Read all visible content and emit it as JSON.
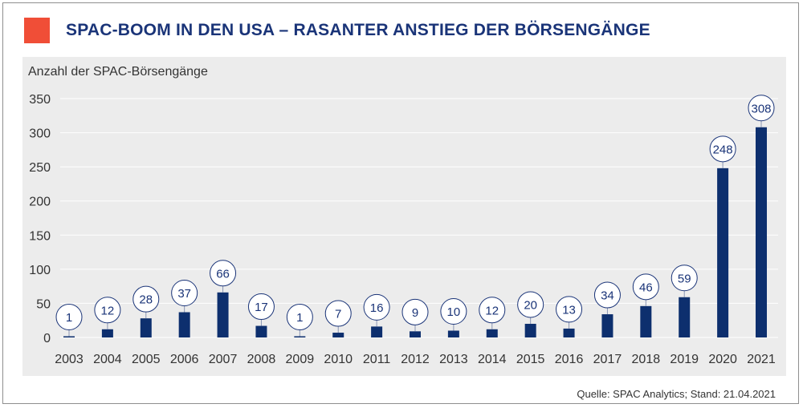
{
  "title": "SPAC-BOOM IN DEN USA – RASANTER ANSTIEG DER BÖRSENGÄNGE",
  "source": "Quelle: SPAC Analytics; Stand: 21.04.2021",
  "colors": {
    "accent": "#f04e37",
    "bar": "#0d2f6e",
    "title": "#1a3478",
    "panel": "#ececec",
    "grid": "#ffffff"
  },
  "chart_data": {
    "type": "bar",
    "ylabel": "Anzahl der SPAC-Börsengänge",
    "ylim": [
      0,
      350
    ],
    "yticks": [
      0,
      50,
      100,
      150,
      200,
      250,
      300,
      350
    ],
    "grid": true,
    "categories": [
      "2003",
      "2004",
      "2005",
      "2006",
      "2007",
      "2008",
      "2009",
      "2010",
      "2011",
      "2012",
      "2013",
      "2014",
      "2015",
      "2016",
      "2017",
      "2018",
      "2019",
      "2020",
      "2021"
    ],
    "values": [
      1,
      12,
      28,
      37,
      66,
      17,
      1,
      7,
      16,
      9,
      10,
      12,
      20,
      13,
      34,
      46,
      59,
      248,
      308
    ]
  }
}
